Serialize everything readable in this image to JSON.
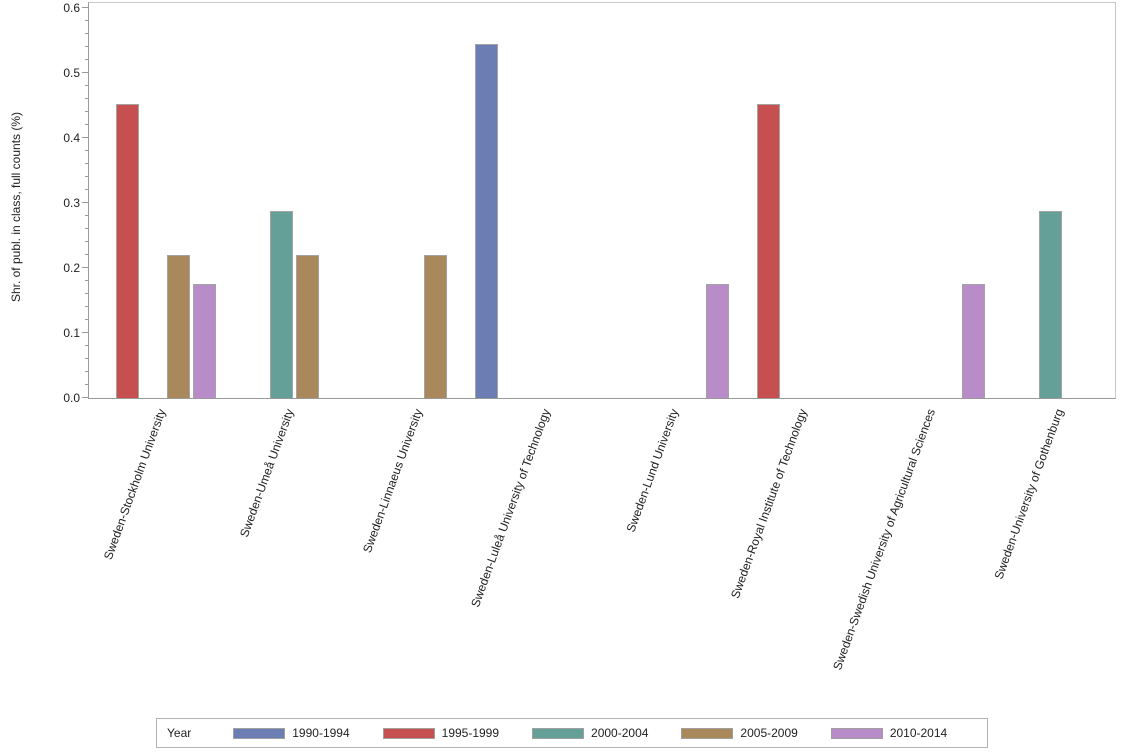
{
  "chart_data": {
    "type": "bar",
    "title": "",
    "xlabel": "",
    "ylabel": "Shr. of publ. in class, full counts (%)",
    "ylim": [
      0,
      0.6
    ],
    "ytick_values": [
      0.0,
      0.1,
      0.2,
      0.3,
      0.4,
      0.5,
      0.6
    ],
    "ytick_labels": [
      "0.0",
      "0.1",
      "0.2",
      "0.3",
      "0.4",
      "0.5",
      "0.6"
    ],
    "y_minor_tick_step": 0.02,
    "grid": "off",
    "legend_title": "Year",
    "legend_position": "bottom",
    "categories": [
      "Sweden-Stockholm University",
      "Sweden-Umeå University",
      "Sweden-Linnaeus University",
      "Sweden-Luleå University of Technology",
      "Sweden-Lund University",
      "Sweden-Royal Institute of Technology",
      "Sweden-Swedish University of Agricultural Sciences",
      "Sweden-University of Gothenburg"
    ],
    "series": [
      {
        "name": "1990-1994",
        "color": "#6C7DB3",
        "values": [
          null,
          null,
          null,
          0.545,
          null,
          null,
          null,
          null
        ]
      },
      {
        "name": "1995-1999",
        "color": "#C6504F",
        "values": [
          0.452,
          null,
          null,
          null,
          null,
          0.452,
          null,
          null
        ]
      },
      {
        "name": "2000-2004",
        "color": "#64A098",
        "values": [
          null,
          0.287,
          null,
          null,
          null,
          null,
          null,
          0.287
        ]
      },
      {
        "name": "2005-2009",
        "color": "#A9895C",
        "values": [
          0.22,
          0.22,
          0.22,
          null,
          null,
          null,
          null,
          null
        ]
      },
      {
        "name": "2010-2014",
        "color": "#B78CC9",
        "values": [
          0.176,
          null,
          null,
          null,
          0.176,
          null,
          0.176,
          null
        ]
      }
    ],
    "bar_outline_color": "#a3a3a3",
    "axis_line_color": "#9a9a9a",
    "frame_line_color": "#c9c9c9"
  }
}
